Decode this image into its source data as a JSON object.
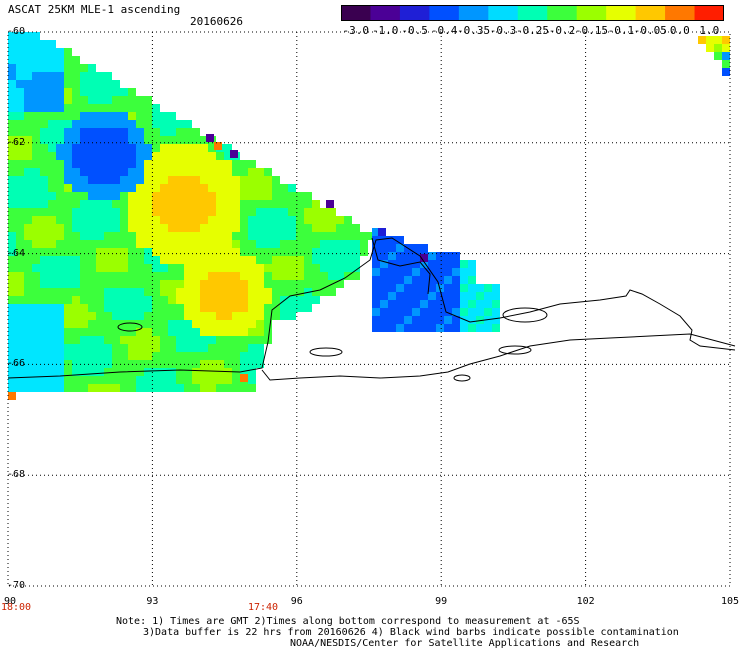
{
  "header": {
    "title": "ASCAT 25KM MLE-1 ascending",
    "date": "20160626"
  },
  "colorbar": {
    "labels": [
      "-3.0",
      "-1.0",
      "-0.5",
      "-0.4",
      "-0.35",
      "-0.3",
      "-0.25",
      "-0.2",
      "-0.15",
      "-0.1",
      "-0.05",
      "0.0",
      "1.0"
    ],
    "colors": [
      "#3a0050",
      "#4b0096",
      "#1f1fd6",
      "#0050ff",
      "#0096ff",
      "#00dcff",
      "#00ffb4",
      "#3cff3c",
      "#9bff00",
      "#e6ff00",
      "#ffc800",
      "#ff7800",
      "#ff1e00"
    ]
  },
  "map": {
    "lat_labels": [
      "-60",
      "-62",
      "-64",
      "-66",
      "-68",
      "-70"
    ],
    "lon_labels": [
      "90",
      "93",
      "96",
      "99",
      "102",
      "105"
    ],
    "time_labels": [
      "18:00",
      "17:40"
    ],
    "lat_range": [
      -70,
      -60
    ],
    "lon_range": [
      90,
      105
    ]
  },
  "notes": {
    "line1": "Note: 1) Times are GMT 2)Times along bottom correspond to measurement at -65S",
    "line2": "3)Data buffer is 22 hrs from 20160626 4) Black wind barbs indicate possible contamination",
    "line3": "NOAA/NESDIS/Center for Satellite Applications and Research"
  }
}
